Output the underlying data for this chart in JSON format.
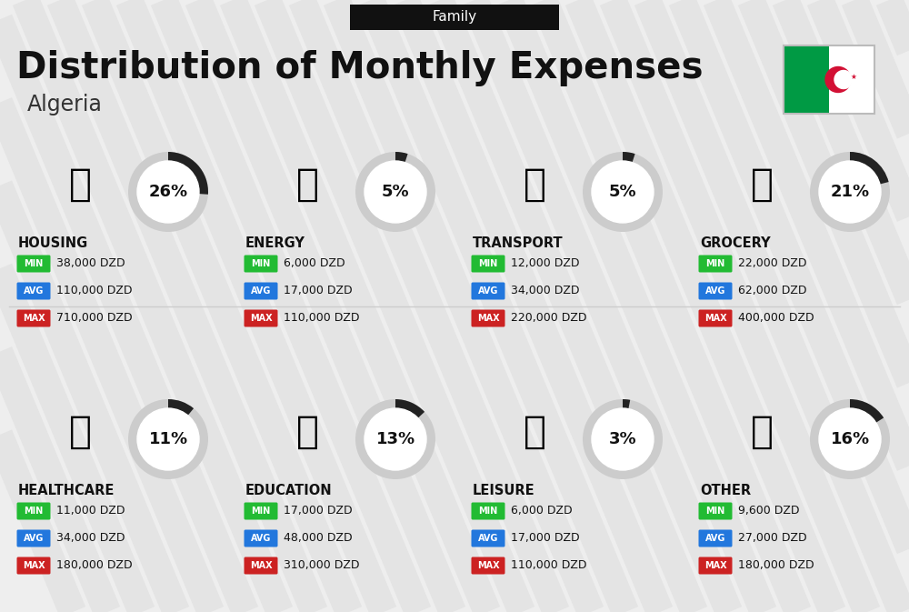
{
  "title": "Distribution of Monthly Expenses",
  "subtitle": "Family",
  "country": "Algeria",
  "bg_color": "#eeeeee",
  "stripe_color": "#e4e4e4",
  "title_color": "#111111",
  "categories": [
    {
      "name": "HOUSING",
      "pct": 26,
      "min": "38,000 DZD",
      "avg": "110,000 DZD",
      "max": "710,000 DZD",
      "row": 0,
      "col": 0
    },
    {
      "name": "ENERGY",
      "pct": 5,
      "min": "6,000 DZD",
      "avg": "17,000 DZD",
      "max": "110,000 DZD",
      "row": 0,
      "col": 1
    },
    {
      "name": "TRANSPORT",
      "pct": 5,
      "min": "12,000 DZD",
      "avg": "34,000 DZD",
      "max": "220,000 DZD",
      "row": 0,
      "col": 2
    },
    {
      "name": "GROCERY",
      "pct": 21,
      "min": "22,000 DZD",
      "avg": "62,000 DZD",
      "max": "400,000 DZD",
      "row": 0,
      "col": 3
    },
    {
      "name": "HEALTHCARE",
      "pct": 11,
      "min": "11,000 DZD",
      "avg": "34,000 DZD",
      "max": "180,000 DZD",
      "row": 1,
      "col": 0
    },
    {
      "name": "EDUCATION",
      "pct": 13,
      "min": "17,000 DZD",
      "avg": "48,000 DZD",
      "max": "310,000 DZD",
      "row": 1,
      "col": 1
    },
    {
      "name": "LEISURE",
      "pct": 3,
      "min": "6,000 DZD",
      "avg": "17,000 DZD",
      "max": "110,000 DZD",
      "row": 1,
      "col": 2
    },
    {
      "name": "OTHER",
      "pct": 16,
      "min": "9,600 DZD",
      "avg": "27,000 DZD",
      "max": "180,000 DZD",
      "row": 1,
      "col": 3
    }
  ],
  "min_color": "#22bb33",
  "avg_color": "#2277dd",
  "max_color": "#cc2222",
  "arc_dark": "#222222",
  "arc_light": "#cccccc",
  "flag_green": "#009A44",
  "flag_white": "#FFFFFF",
  "flag_red": "#D21034"
}
